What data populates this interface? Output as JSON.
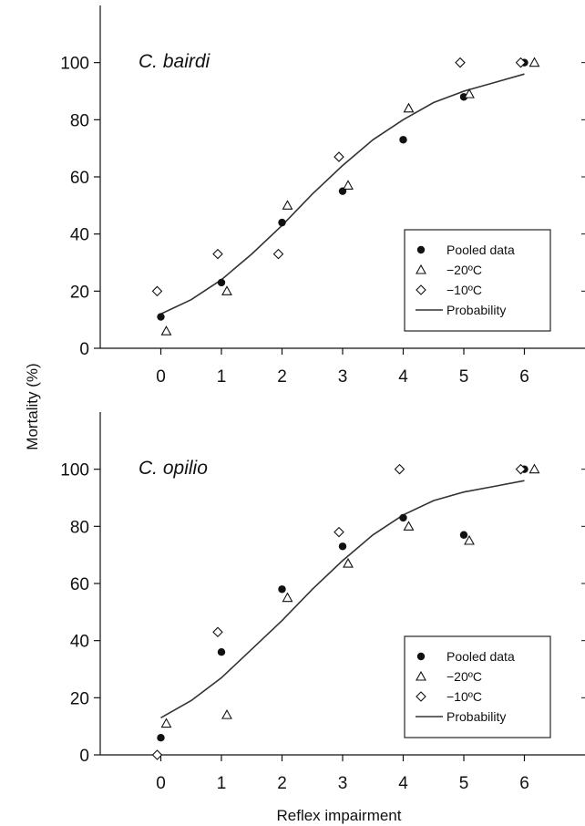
{
  "axes": {
    "ylabel": "Mortality (%)",
    "xlabel": "Reflex impairment"
  },
  "legend": {
    "items": [
      {
        "label": "Pooled data",
        "marker": "filled-circle"
      },
      {
        "label": "−20ºC",
        "marker": "open-triangle"
      },
      {
        "label": "−10ºC",
        "marker": "open-diamond"
      },
      {
        "label": "Probability",
        "marker": "line"
      }
    ]
  },
  "chart_data": [
    {
      "type": "scatter",
      "title": "C. bairdi",
      "xlabel": "Reflex impairment",
      "ylabel": "Mortality (%)",
      "xlim": [
        -1,
        7
      ],
      "ylim": [
        0,
        120
      ],
      "x_ticks": [
        0,
        1,
        2,
        3,
        4,
        5,
        6
      ],
      "y_ticks": [
        0,
        20,
        40,
        60,
        80,
        100
      ],
      "grid": false,
      "legend_position": "lower-right",
      "series": [
        {
          "name": "Pooled data",
          "marker": "filled-circle",
          "x": [
            0,
            1,
            2,
            3,
            4,
            5,
            6
          ],
          "y": [
            11,
            23,
            44,
            55,
            73,
            88,
            100
          ]
        },
        {
          "name": "−20ºC",
          "marker": "open-triangle",
          "x": [
            0,
            1,
            2,
            3,
            4,
            5,
            6
          ],
          "y": [
            6,
            20,
            50,
            57,
            84,
            89,
            100
          ]
        },
        {
          "name": "−10ºC",
          "marker": "open-diamond",
          "x": [
            0,
            1,
            2,
            3,
            5,
            6
          ],
          "y": [
            20,
            33,
            33,
            67,
            100,
            100
          ]
        },
        {
          "name": "Probability",
          "type": "line",
          "x": [
            0,
            0.5,
            1,
            1.5,
            2,
            2.5,
            3,
            3.5,
            4,
            4.5,
            5,
            5.5,
            6
          ],
          "y": [
            12,
            17,
            24,
            33,
            43,
            54,
            64,
            73,
            80,
            86,
            90,
            93,
            96
          ]
        }
      ]
    },
    {
      "type": "scatter",
      "title": "C. opilio",
      "xlabel": "Reflex impairment",
      "ylabel": "Mortality (%)",
      "xlim": [
        -1,
        7
      ],
      "ylim": [
        0,
        120
      ],
      "x_ticks": [
        0,
        1,
        2,
        3,
        4,
        5,
        6
      ],
      "y_ticks": [
        0,
        20,
        40,
        60,
        80,
        100
      ],
      "grid": false,
      "legend_position": "lower-right",
      "series": [
        {
          "name": "Pooled data",
          "marker": "filled-circle",
          "x": [
            0,
            1,
            2,
            3,
            4,
            5,
            6
          ],
          "y": [
            6,
            36,
            58,
            73,
            83,
            77,
            100
          ]
        },
        {
          "name": "−20ºC",
          "marker": "open-triangle",
          "x": [
            0,
            1,
            2,
            3,
            4,
            5,
            6
          ],
          "y": [
            11,
            14,
            55,
            67,
            80,
            75,
            100
          ]
        },
        {
          "name": "−10ºC",
          "marker": "open-diamond",
          "x": [
            0,
            1,
            3,
            4,
            6
          ],
          "y": [
            0,
            43,
            78,
            100,
            100
          ]
        },
        {
          "name": "Probability",
          "type": "line",
          "x": [
            0,
            0.5,
            1,
            1.5,
            2,
            2.5,
            3,
            3.5,
            4,
            4.5,
            5,
            5.5,
            6
          ],
          "y": [
            13,
            19,
            27,
            37,
            47,
            58,
            68,
            77,
            84,
            89,
            92,
            94,
            96
          ]
        }
      ]
    }
  ]
}
